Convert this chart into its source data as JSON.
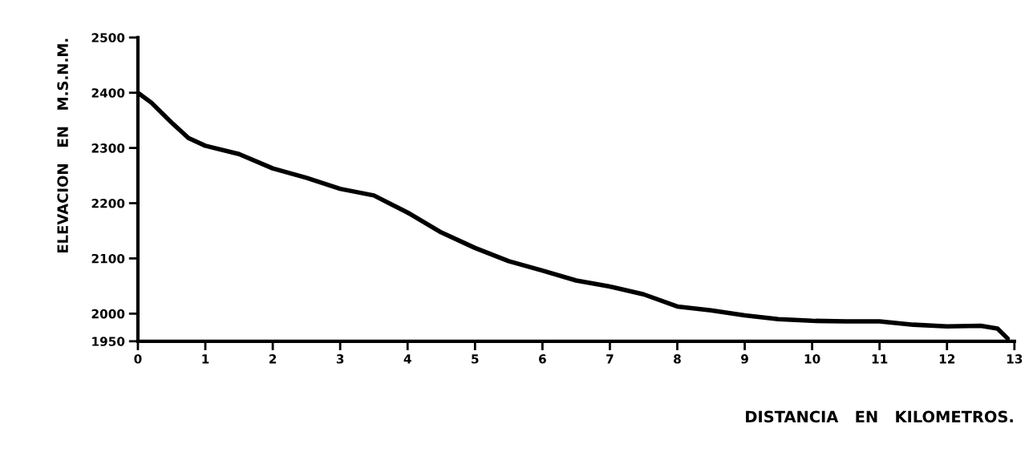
{
  "chart_data": {
    "type": "line",
    "xlabel": "DISTANCIA   EN   KILOMETROS.",
    "ylabel": "ELEVACION   EN   M.S.N.M.",
    "x": [
      0,
      0.2,
      0.5,
      0.75,
      1,
      1.5,
      2,
      2.5,
      3,
      3.5,
      4,
      4.5,
      5,
      5.5,
      6,
      6.5,
      7,
      7.5,
      8,
      8.5,
      9,
      9.5,
      10,
      10.5,
      11,
      11.5,
      12,
      12.5,
      12.75,
      12.9
    ],
    "series": [
      {
        "color": "#000000",
        "values": [
          2400,
          2382,
          2346,
          2318,
          2304,
          2289,
          2263,
          2246,
          2226,
          2214,
          2183,
          2147,
          2119,
          2095,
          2078,
          2060,
          2049,
          2035,
          2013,
          2006,
          1997,
          1990,
          1987,
          1986,
          1986,
          1980,
          1977,
          1978,
          1973,
          1955
        ]
      }
    ],
    "xlim": [
      0,
      13
    ],
    "ylim": [
      1950,
      2500
    ],
    "xticks": [
      0,
      1,
      2,
      3,
      4,
      5,
      6,
      7,
      8,
      9,
      10,
      11,
      12,
      13
    ],
    "yticks": [
      1950,
      2000,
      2100,
      2200,
      2300,
      2400,
      2500
    ],
    "grid": false,
    "legend": false,
    "marker": "none",
    "line_style": "solid"
  }
}
